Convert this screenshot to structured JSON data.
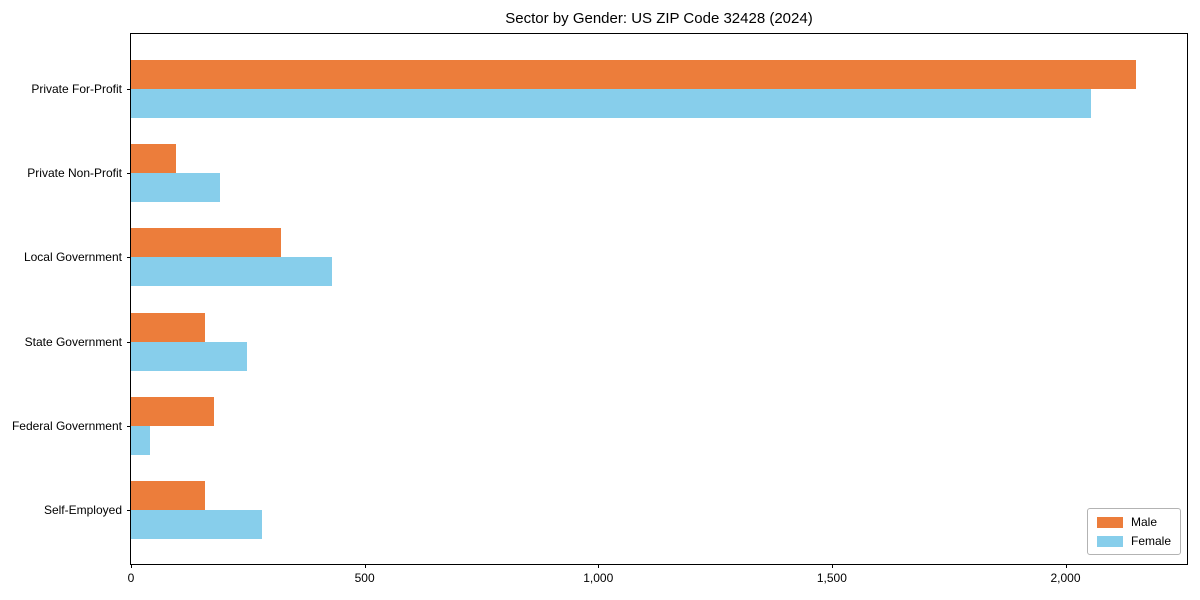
{
  "title": "Sector by Gender: US ZIP Code 32428 (2024)",
  "chart_data": {
    "type": "bar",
    "orientation": "horizontal",
    "title": "Sector by Gender: US ZIP Code 32428 (2024)",
    "categories": [
      "Private For-Profit",
      "Private Non-Profit",
      "Local Government",
      "State Government",
      "Federal Government",
      "Self-Employed"
    ],
    "series": [
      {
        "name": "Male",
        "color": "#EC7D3B",
        "values": [
          2150,
          97,
          320,
          158,
          177,
          158
        ]
      },
      {
        "name": "Female",
        "color": "#87CEEB",
        "values": [
          2055,
          190,
          430,
          248,
          40,
          281
        ]
      }
    ],
    "xlabel": "",
    "ylabel": "",
    "xlim": [
      0,
      2260
    ],
    "xticks": [
      0,
      500,
      1000,
      1500,
      2000
    ],
    "xtick_labels": [
      "0",
      "500",
      "1,000",
      "1,500",
      "2,000"
    ],
    "legend_position": "lower right",
    "grid": false,
    "background_color": "#ffffff",
    "spine_color": "#000000"
  }
}
